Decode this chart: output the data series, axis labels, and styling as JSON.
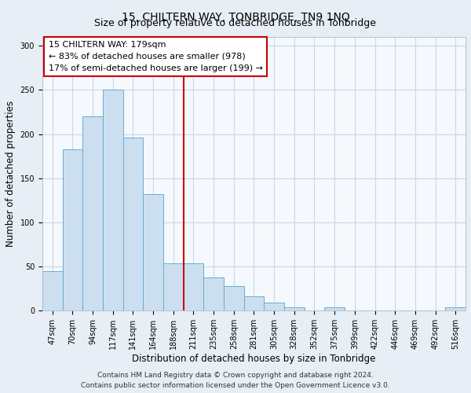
{
  "title": "15, CHILTERN WAY, TONBRIDGE, TN9 1NQ",
  "subtitle": "Size of property relative to detached houses in Tonbridge",
  "xlabel": "Distribution of detached houses by size in Tonbridge",
  "ylabel": "Number of detached properties",
  "bar_labels": [
    "47sqm",
    "70sqm",
    "94sqm",
    "117sqm",
    "141sqm",
    "164sqm",
    "188sqm",
    "211sqm",
    "235sqm",
    "258sqm",
    "281sqm",
    "305sqm",
    "328sqm",
    "352sqm",
    "375sqm",
    "399sqm",
    "422sqm",
    "446sqm",
    "469sqm",
    "492sqm",
    "516sqm"
  ],
  "bar_values": [
    45,
    183,
    220,
    250,
    196,
    132,
    54,
    54,
    38,
    28,
    16,
    9,
    4,
    0,
    4,
    0,
    0,
    0,
    0,
    0,
    4
  ],
  "bar_color": "#ccdff0",
  "bar_edge_color": "#6aaad4",
  "reference_line_x": 6.5,
  "reference_line_color": "#cc0000",
  "annotation_line1": "15 CHILTERN WAY: 179sqm",
  "annotation_line2": "← 83% of detached houses are smaller (978)",
  "annotation_line3": "17% of semi-detached houses are larger (199) →",
  "ylim": [
    0,
    310
  ],
  "yticks": [
    0,
    50,
    100,
    150,
    200,
    250,
    300
  ],
  "footer_line1": "Contains HM Land Registry data © Crown copyright and database right 2024.",
  "footer_line2": "Contains public sector information licensed under the Open Government Licence v3.0.",
  "bg_color": "#e8eef5",
  "plot_bg_color": "#f5f8fc",
  "grid_color": "#c8d8e8",
  "title_fontsize": 10,
  "subtitle_fontsize": 9,
  "axis_label_fontsize": 8.5,
  "tick_fontsize": 7,
  "annotation_fontsize": 8,
  "footer_fontsize": 6.5
}
